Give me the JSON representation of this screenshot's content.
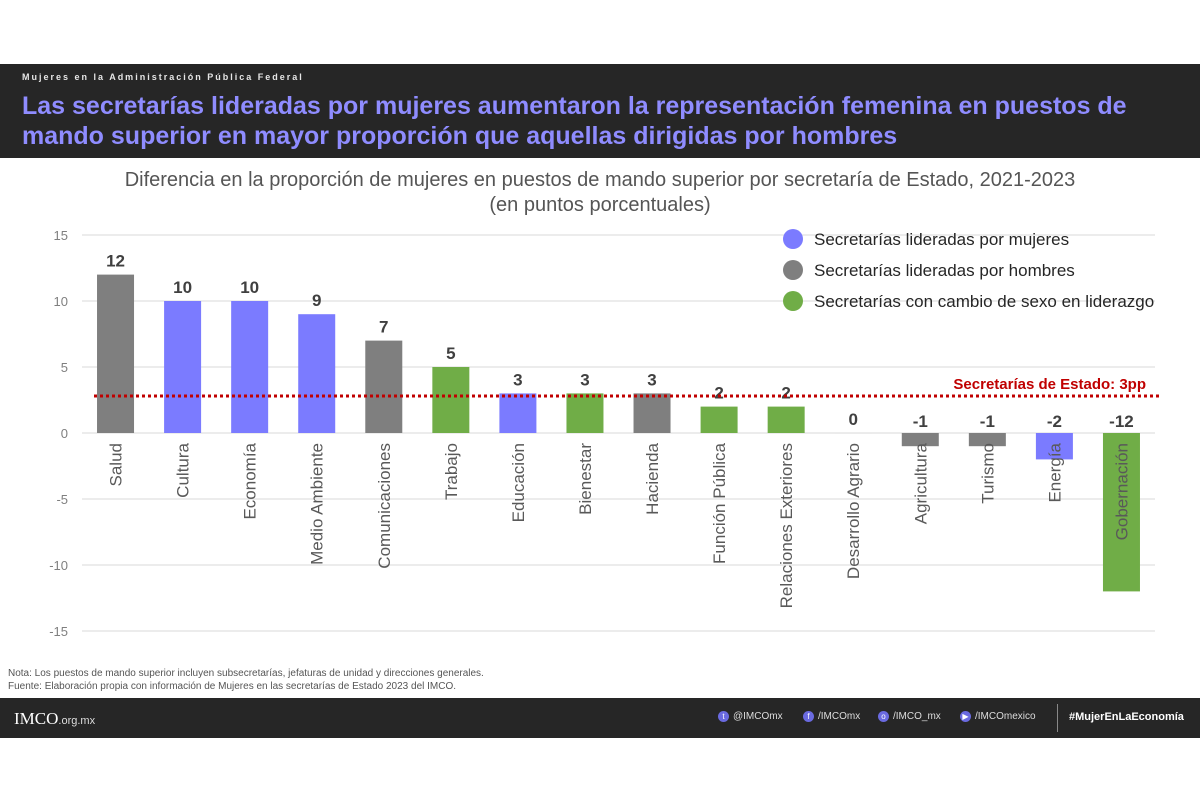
{
  "header": {
    "kicker": "Mujeres en la Administración Pública Federal",
    "headline": "Las secretarías lideradas por mujeres aumentaron la representación femenina en puestos de mando superior en mayor proporción que aquellas dirigidas por hombres"
  },
  "chart_data": {
    "type": "bar",
    "title": "Diferencia en la proporción de mujeres en puestos de mando superior por secretaría de Estado, 2021-2023",
    "subtitle": "(en puntos porcentuales)",
    "xlabel": "",
    "ylabel": "",
    "ylim": [
      -15,
      15
    ],
    "yticks": [
      15,
      10,
      5,
      0,
      -5,
      -10,
      -15
    ],
    "grid": true,
    "categories": [
      "Salud",
      "Cultura",
      "Economía",
      "Medio Ambiente",
      "Comunicaciones",
      "Trabajo",
      "Educación",
      "Bienestar",
      "Hacienda",
      "Función Pública",
      "Relaciones Exteriores",
      "Desarrollo Agrario",
      "Agricultura",
      "Turismo",
      "Energía",
      "Gobernación"
    ],
    "values": [
      12,
      10,
      10,
      9,
      7,
      5,
      3,
      3,
      3,
      2,
      2,
      0,
      -1,
      -1,
      -2,
      -12
    ],
    "groups": [
      "hombres",
      "mujeres",
      "mujeres",
      "mujeres",
      "hombres",
      "cambio",
      "mujeres",
      "cambio",
      "hombres",
      "cambio",
      "cambio",
      "hombres",
      "hombres",
      "hombres",
      "mujeres",
      "cambio"
    ],
    "colors": {
      "mujeres": "#7b7bff",
      "hombres": "#7f7f7f",
      "cambio": "#70ad47"
    },
    "legend_position": "top-right",
    "legend": [
      {
        "key": "mujeres",
        "label": "Secretarías lideradas por mujeres"
      },
      {
        "key": "hombres",
        "label": "Secretarías lideradas por hombres"
      },
      {
        "key": "cambio",
        "label": "Secretarías con cambio de sexo en liderazgo"
      }
    ],
    "reference_line": {
      "value": 2.8,
      "label": "Secretarías de Estado: 3pp",
      "color": "#c00000"
    }
  },
  "notes": {
    "note": "Nota: Los puestos de mando superior incluyen subsecretarías, jefaturas de unidad y direcciones generales.",
    "source": "Fuente: Elaboración propia con información de Mujeres en las secretarías de Estado 2023 del IMCO."
  },
  "footer": {
    "logo": "IMCO",
    "logo_suffix": ".org.mx",
    "twitter": "@IMCOmx",
    "facebook": "/IMCOmx",
    "instagram": "/IMCO_mx",
    "youtube": "/IMCOmexico",
    "hashtag": "#MujerEnLaEconomía"
  }
}
